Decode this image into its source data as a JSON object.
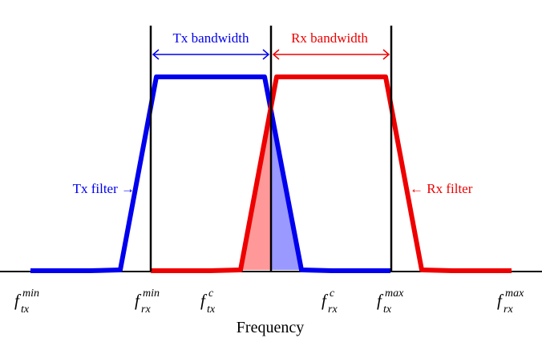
{
  "colors": {
    "tx": "#0000ee",
    "rx": "#ee0000",
    "tx_fill": "#9999ff",
    "rx_fill": "#ff9999",
    "axis": "#000000"
  },
  "labels": {
    "tx_bandwidth": "Tx bandwidth",
    "rx_bandwidth": "Rx bandwidth",
    "tx_filter": "Tx filter →",
    "rx_filter": "← Rx filter",
    "x_axis": "Frequency"
  },
  "ticks": [
    {
      "name": "f-tx-min",
      "base": "f",
      "sup": "min",
      "sub": "tx"
    },
    {
      "name": "f-rx-min",
      "base": "f",
      "sup": "min",
      "sub": "rx"
    },
    {
      "name": "f-tx-c",
      "base": "f",
      "sup": "c",
      "sub": "tx"
    },
    {
      "name": "f-rx-c",
      "base": "f",
      "sup": "c",
      "sub": "rx"
    },
    {
      "name": "f-tx-max",
      "base": "f",
      "sup": "max",
      "sub": "tx"
    },
    {
      "name": "f-rx-max",
      "base": "f",
      "sup": "max",
      "sub": "rx"
    }
  ]
}
